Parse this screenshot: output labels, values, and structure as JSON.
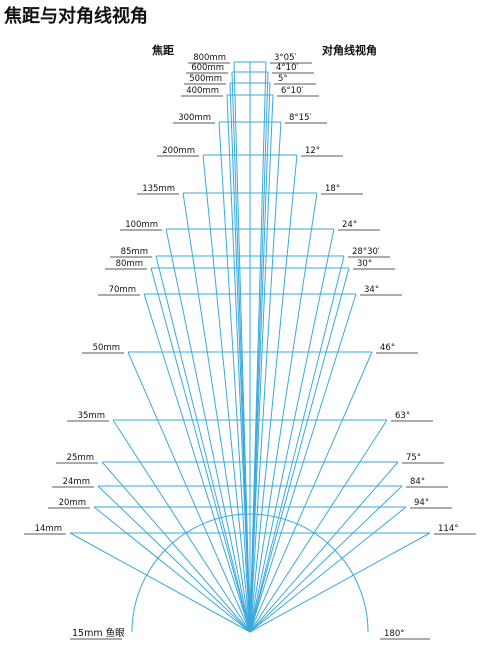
{
  "title": "焦距与对角线视角",
  "header": {
    "focal_length": "焦距",
    "angle": "对角线视角"
  },
  "rows": [
    {
      "focal": "800mm",
      "angle": "3°05′"
    },
    {
      "focal": "600mm",
      "angle": "4°10′"
    },
    {
      "focal": "500mm",
      "angle": "5°"
    },
    {
      "focal": "400mm",
      "angle": "6°10′"
    },
    {
      "focal": "300mm",
      "angle": "8°15′"
    },
    {
      "focal": "200mm",
      "angle": "12°"
    },
    {
      "focal": "135mm",
      "angle": "18°"
    },
    {
      "focal": "100mm",
      "angle": "24°"
    },
    {
      "focal": "85mm",
      "angle": "28°30′"
    },
    {
      "focal": "80mm",
      "angle": "30°"
    },
    {
      "focal": "70mm",
      "angle": "34°"
    },
    {
      "focal": "50mm",
      "angle": "46°"
    },
    {
      "focal": "35mm",
      "angle": "63°"
    },
    {
      "focal": "25mm",
      "angle": "75°"
    },
    {
      "focal": "24mm",
      "angle": "84°"
    },
    {
      "focal": "20mm",
      "angle": "94°"
    },
    {
      "focal": "14mm",
      "angle": "114°"
    }
  ],
  "fisheye": {
    "focal": "15mm 鱼眼",
    "angle": "180°"
  }
}
